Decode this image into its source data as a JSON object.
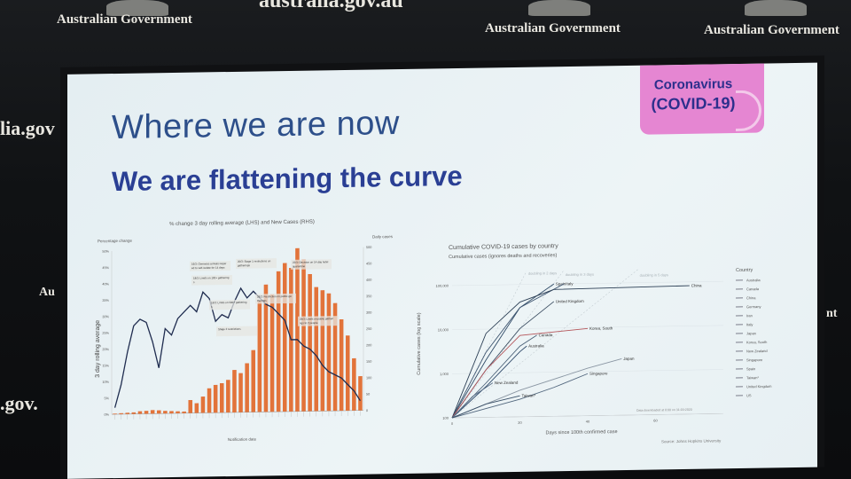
{
  "backdrop": {
    "gov_label_left": "Australian Government",
    "gov_label_center": "Australian Government",
    "gov_label_right": "Australian Government",
    "url_fragment_top": "australia.gov.au",
    "url_fragment_left": "lia.gov",
    "url_fragment_bottom_left": ".gov.",
    "side_fragment_left": "Au",
    "side_fragment_right": "nt"
  },
  "slide": {
    "heading": "Where we are now",
    "subheading": "We are flattening the curve",
    "badge_line1": "Coronavirus",
    "badge_line2": "(COVID-19)",
    "badge_color": "#e586d2",
    "heading_color": "#2d4f8a",
    "subheading_color": "#2a3f94"
  },
  "chart_data": [
    {
      "type": "bar",
      "title": "% change 3 day rolling average (LHS) and New Cases (RHS)",
      "ylabel_left": "3 day rolling average",
      "ylabel_left_header": "Percentage change",
      "ylabel_right_header": "Daily cases",
      "xlabel": "Notification date",
      "left_ticks": [
        "0%",
        "5%",
        "10%",
        "15%",
        "20%",
        "25%",
        "30%",
        "35%",
        "40%",
        "45%",
        "50%"
      ],
      "right_ticks": [
        "0",
        "50",
        "100",
        "150",
        "200",
        "250",
        "300",
        "350",
        "400",
        "450",
        "500"
      ],
      "ylim_left": [
        0,
        50
      ],
      "ylim_right": [
        0,
        500
      ],
      "bar_color": "#e2733a",
      "line_color": "#1f2c4f",
      "series": [
        {
          "name": "New Cases",
          "axis": "right",
          "values": [
            2,
            3,
            4,
            5,
            8,
            9,
            11,
            10,
            8,
            7,
            6,
            5,
            40,
            30,
            50,
            75,
            85,
            90,
            100,
            130,
            120,
            150,
            190,
            340,
            390,
            360,
            430,
            455,
            440,
            500,
            465,
            420,
            380,
            370,
            360,
            330,
            280,
            230,
            160,
            105
          ]
        },
        {
          "name": "% change 3 day rolling average",
          "axis": "left",
          "values": [
            2,
            9,
            19,
            27,
            29,
            28,
            22,
            14,
            26,
            24,
            29,
            31,
            33,
            31,
            37,
            35,
            28,
            30,
            29,
            34,
            38,
            35,
            37,
            35,
            33,
            32,
            30,
            28,
            22,
            22,
            20,
            19,
            17,
            14,
            12,
            11,
            10,
            8,
            6,
            3
          ]
        }
      ],
      "annotations": [
        "16/3: Overseas arrivals required to self-isolate for 14 days",
        "18/3: Limits on 100+ gatherings",
        "20/3: Stage 1 restrictions on gatherings",
        "22/3: Decision on 14 day hotel quarantine",
        "16/3: Limits on 500+ gatherings",
        "26/3: Restriction on public gatherings",
        "29/3: Limits on public gatherings to 2 people",
        "Stage 2 restrictions"
      ]
    },
    {
      "type": "line",
      "title": "Cumulative COVID-19 cases by country",
      "subtitle": "Cumulative cases (ignores deaths and recoveries)",
      "ylabel": "Cumulative cases (log scale)",
      "xlabel": "Days since 100th confirmed case",
      "y_scale": "log",
      "y_ticks": [
        "100",
        "1,000",
        "10,000",
        "100,000"
      ],
      "x_ticks": [
        "0",
        "20",
        "40",
        "60"
      ],
      "xlim": [
        0,
        80
      ],
      "legend_title": "Country",
      "legend": [
        "Australia",
        "Canada",
        "China",
        "Germany",
        "Iran",
        "Italy",
        "Japan",
        "Korea, South",
        "New Zealand",
        "Singapore",
        "Spain",
        "Taiwan*",
        "United Kingdom",
        "US"
      ],
      "guide_labels": [
        "doubling in 2 days",
        "doubling in 3 days",
        "doubling in 5 days"
      ],
      "source": "Source: Johns Hopkins University",
      "note": "Data downloaded at 0:00 on 31-03-2020",
      "series": [
        {
          "name": "Spain",
          "x": [
            0,
            10,
            20,
            30
          ],
          "y": [
            100,
            2000,
            30000,
            100000
          ]
        },
        {
          "name": "Italy",
          "x": [
            0,
            10,
            20,
            33
          ],
          "y": [
            100,
            3000,
            30000,
            100000
          ]
        },
        {
          "name": "United Kingdom",
          "x": [
            0,
            10,
            20,
            30
          ],
          "y": [
            100,
            1200,
            10000,
            40000
          ]
        },
        {
          "name": "China",
          "x": [
            0,
            10,
            20,
            30,
            70
          ],
          "y": [
            100,
            8000,
            40000,
            75000,
            82000
          ]
        },
        {
          "name": "Canada",
          "x": [
            0,
            10,
            20,
            25
          ],
          "y": [
            100,
            600,
            4000,
            7000
          ]
        },
        {
          "name": "Korea, South",
          "x": [
            0,
            10,
            20,
            40
          ],
          "y": [
            100,
            1200,
            7000,
            9500
          ]
        },
        {
          "name": "Australia",
          "x": [
            0,
            10,
            20,
            22
          ],
          "y": [
            100,
            500,
            3000,
            4000
          ]
        },
        {
          "name": "Japan",
          "x": [
            0,
            20,
            40,
            50
          ],
          "y": [
            100,
            400,
            1200,
            1900
          ]
        },
        {
          "name": "Singapore",
          "x": [
            0,
            20,
            30,
            40
          ],
          "y": [
            100,
            250,
            450,
            900
          ]
        },
        {
          "name": "New Zealand",
          "x": [
            0,
            6,
            12
          ],
          "y": [
            100,
            300,
            600
          ]
        },
        {
          "name": "Taiwan*",
          "x": [
            0,
            10,
            20
          ],
          "y": [
            100,
            200,
            300
          ]
        }
      ]
    }
  ]
}
